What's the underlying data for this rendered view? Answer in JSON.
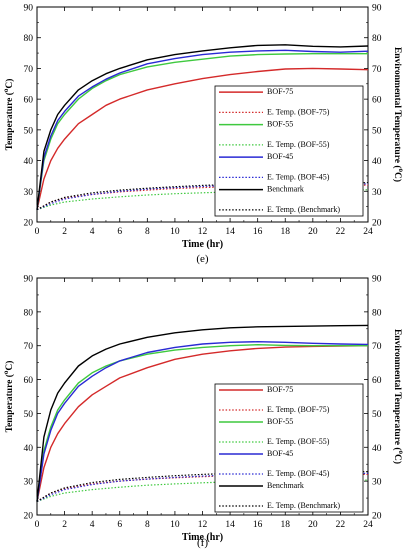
{
  "chart_data": [
    {
      "type": "line",
      "panel_label": "(e)",
      "xlabel": "Time (hr)",
      "ylabel": "Temperature (",
      "ylabel2": "Environmental Temperature (",
      "ylabel_sup": "o",
      "ylabel_close": "C)",
      "xlim": [
        0,
        24
      ],
      "ylim": [
        20,
        90
      ],
      "x_ticks": [
        "0",
        "2",
        "4",
        "6",
        "8",
        "10",
        "12",
        "14",
        "16",
        "18",
        "20",
        "22",
        "24"
      ],
      "y_ticks": [
        "20",
        "30",
        "40",
        "50",
        "60",
        "70",
        "80",
        "90"
      ],
      "legend_position": "right",
      "series": [
        {
          "name": "BOF-75",
          "color": "#d42a2a",
          "dash": "solid",
          "x": [
            0,
            0.5,
            1,
            1.5,
            2,
            3,
            4,
            5,
            6,
            8,
            10,
            12,
            14,
            16,
            18,
            20,
            22,
            24
          ],
          "y": [
            24,
            34,
            40,
            44,
            47,
            52,
            55,
            58,
            60,
            63,
            65,
            66.7,
            68,
            69,
            69.8,
            70,
            69.8,
            69.6
          ]
        },
        {
          "name": "E. Temp. (BOF-75)",
          "color": "#d42a2a",
          "dash": "dot",
          "x": [
            0,
            1,
            2,
            4,
            6,
            8,
            10,
            12,
            14,
            16,
            18,
            20,
            22,
            24
          ],
          "y": [
            24,
            26.5,
            27.8,
            29,
            29.8,
            30.4,
            30.9,
            31.2,
            31.5,
            31.7,
            31.8,
            31.9,
            32,
            32
          ]
        },
        {
          "name": "BOF-55",
          "color": "#3fc93f",
          "dash": "solid",
          "x": [
            0,
            0.5,
            1,
            1.5,
            2,
            3,
            4,
            5,
            6,
            8,
            10,
            12,
            14,
            16,
            18,
            20,
            22,
            24
          ],
          "y": [
            24,
            40,
            47,
            52,
            55,
            60,
            63.5,
            66,
            68,
            70.5,
            72,
            73,
            74,
            74.5,
            74.7,
            74.8,
            74.8,
            74.8
          ]
        },
        {
          "name": "E. Temp. (BOF-55)",
          "color": "#3fc93f",
          "dash": "dot",
          "x": [
            0,
            1,
            2,
            4,
            6,
            8,
            10,
            12,
            14,
            16,
            18,
            20,
            22,
            24
          ],
          "y": [
            24,
            25.5,
            26.5,
            27.5,
            28.2,
            28.8,
            29.2,
            29.5,
            29.8,
            30,
            30.2,
            30.3,
            30.4,
            30.5
          ]
        },
        {
          "name": "BOF-45",
          "color": "#2a2ad4",
          "dash": "solid",
          "x": [
            0,
            0.5,
            1,
            1.5,
            2,
            3,
            4,
            5,
            6,
            8,
            10,
            12,
            14,
            16,
            18,
            20,
            22,
            24
          ],
          "y": [
            24,
            41,
            48,
            53,
            56,
            61,
            64,
            66.5,
            68.5,
            71.5,
            73.2,
            74.5,
            75.3,
            75.7,
            75.9,
            75.5,
            75.3,
            75.6
          ]
        },
        {
          "name": "E. Temp. (BOF-45)",
          "color": "#2a2ad4",
          "dash": "dot",
          "x": [
            0,
            1,
            2,
            4,
            6,
            8,
            10,
            12,
            14,
            16,
            18,
            20,
            22,
            24
          ],
          "y": [
            24,
            26,
            27.5,
            29,
            30,
            30.7,
            31.2,
            31.6,
            31.9,
            32.1,
            32.2,
            32.3,
            32.4,
            32.4
          ]
        },
        {
          "name": "Benchmark",
          "color": "#000000",
          "dash": "solid",
          "x": [
            0,
            0.5,
            1,
            1.5,
            2,
            3,
            4,
            5,
            6,
            8,
            10,
            12,
            14,
            16,
            18,
            20,
            22,
            24
          ],
          "y": [
            24,
            43,
            50,
            55,
            58,
            63,
            66,
            68.3,
            70,
            72.8,
            74.5,
            75.7,
            76.7,
            77.5,
            77.7,
            77.2,
            77,
            77.3
          ]
        },
        {
          "name": "E. Temp. (Benchmark)",
          "color": "#000000",
          "dash": "dot",
          "x": [
            0,
            1,
            2,
            4,
            6,
            8,
            10,
            12,
            14,
            16,
            18,
            20,
            22,
            24
          ],
          "y": [
            24,
            26.5,
            28,
            29.5,
            30.4,
            31,
            31.5,
            31.9,
            32.2,
            32.4,
            32.6,
            32.7,
            32.8,
            32.8
          ]
        }
      ]
    },
    {
      "type": "line",
      "panel_label": "(f)",
      "xlabel": "Time (hr)",
      "ylabel": "Temperature (",
      "ylabel2": "Environmental Temperature (",
      "ylabel_sup": "o",
      "ylabel_close": "C)",
      "xlim": [
        0,
        24
      ],
      "ylim": [
        20,
        90
      ],
      "x_ticks": [
        "0",
        "2",
        "4",
        "6",
        "8",
        "10",
        "12",
        "14",
        "16",
        "18",
        "20",
        "22",
        "24"
      ],
      "y_ticks": [
        "20",
        "30",
        "40",
        "50",
        "60",
        "70",
        "80",
        "90"
      ],
      "legend_position": "right",
      "series": [
        {
          "name": "BOF-75",
          "color": "#d42a2a",
          "dash": "solid",
          "x": [
            0,
            0.5,
            1,
            1.5,
            2,
            3,
            4,
            5,
            6,
            8,
            10,
            12,
            14,
            16,
            18,
            20,
            22,
            24
          ],
          "y": [
            24,
            34,
            40,
            44,
            47,
            52,
            55.5,
            58,
            60.5,
            63.5,
            66,
            67.5,
            68.5,
            69.2,
            69.6,
            69.8,
            69.9,
            70
          ]
        },
        {
          "name": "E. Temp. (BOF-75)",
          "color": "#d42a2a",
          "dash": "dot",
          "x": [
            0,
            1,
            2,
            4,
            6,
            8,
            10,
            12,
            14,
            16,
            18,
            20,
            22,
            24
          ],
          "y": [
            24,
            26.5,
            27.8,
            29.2,
            30,
            30.6,
            31,
            31.3,
            31.6,
            31.8,
            31.9,
            32,
            32,
            32
          ]
        },
        {
          "name": "BOF-55",
          "color": "#3fc93f",
          "dash": "solid",
          "x": [
            0,
            0.5,
            1,
            1.5,
            2,
            3,
            4,
            5,
            6,
            8,
            10,
            12,
            14,
            16,
            18,
            20,
            22,
            24
          ],
          "y": [
            24,
            39,
            46,
            51,
            54,
            59,
            62,
            64,
            65.5,
            67.5,
            68.7,
            69.5,
            70,
            70.3,
            70.1,
            70,
            70,
            70
          ]
        },
        {
          "name": "E. Temp. (BOF-55)",
          "color": "#3fc93f",
          "dash": "dot",
          "x": [
            0,
            1,
            2,
            4,
            6,
            8,
            10,
            12,
            14,
            16,
            18,
            20,
            22,
            24
          ],
          "y": [
            24,
            25.5,
            26.5,
            27.5,
            28.2,
            28.8,
            29.2,
            29.5,
            29.8,
            30,
            30.1,
            30.2,
            30.2,
            30.3
          ]
        },
        {
          "name": "BOF-45",
          "color": "#2a2ad4",
          "dash": "solid",
          "x": [
            0,
            0.5,
            1,
            1.5,
            2,
            3,
            4,
            5,
            6,
            8,
            10,
            12,
            14,
            16,
            18,
            20,
            22,
            24
          ],
          "y": [
            24,
            38,
            45,
            50,
            53,
            58,
            61,
            63.5,
            65.5,
            68,
            69.5,
            70.5,
            71,
            71.2,
            71,
            70.7,
            70.5,
            70.4
          ]
        },
        {
          "name": "E. Temp. (BOF-45)",
          "color": "#2a2ad4",
          "dash": "dot",
          "x": [
            0,
            1,
            2,
            4,
            6,
            8,
            10,
            12,
            14,
            16,
            18,
            20,
            22,
            24
          ],
          "y": [
            24,
            26,
            27.5,
            29,
            30,
            30.6,
            31.1,
            31.5,
            31.8,
            32,
            32.1,
            32.2,
            32.3,
            32.3
          ]
        },
        {
          "name": "Benchmark",
          "color": "#000000",
          "dash": "solid",
          "x": [
            0,
            0.5,
            1,
            1.5,
            2,
            3,
            4,
            5,
            6,
            8,
            10,
            12,
            14,
            16,
            18,
            20,
            22,
            24
          ],
          "y": [
            24,
            43,
            51,
            56,
            59,
            64,
            67,
            69,
            70.5,
            72.5,
            73.8,
            74.7,
            75.3,
            75.6,
            75.7,
            75.8,
            75.9,
            76
          ]
        },
        {
          "name": "E. Temp. (Benchmark)",
          "color": "#000000",
          "dash": "dot",
          "x": [
            0,
            1,
            2,
            4,
            6,
            8,
            10,
            12,
            14,
            16,
            18,
            20,
            22,
            24
          ],
          "y": [
            24,
            26.5,
            28,
            29.6,
            30.5,
            31.1,
            31.6,
            32,
            32.3,
            32.5,
            32.6,
            32.7,
            32.8,
            32.8
          ]
        }
      ]
    }
  ]
}
